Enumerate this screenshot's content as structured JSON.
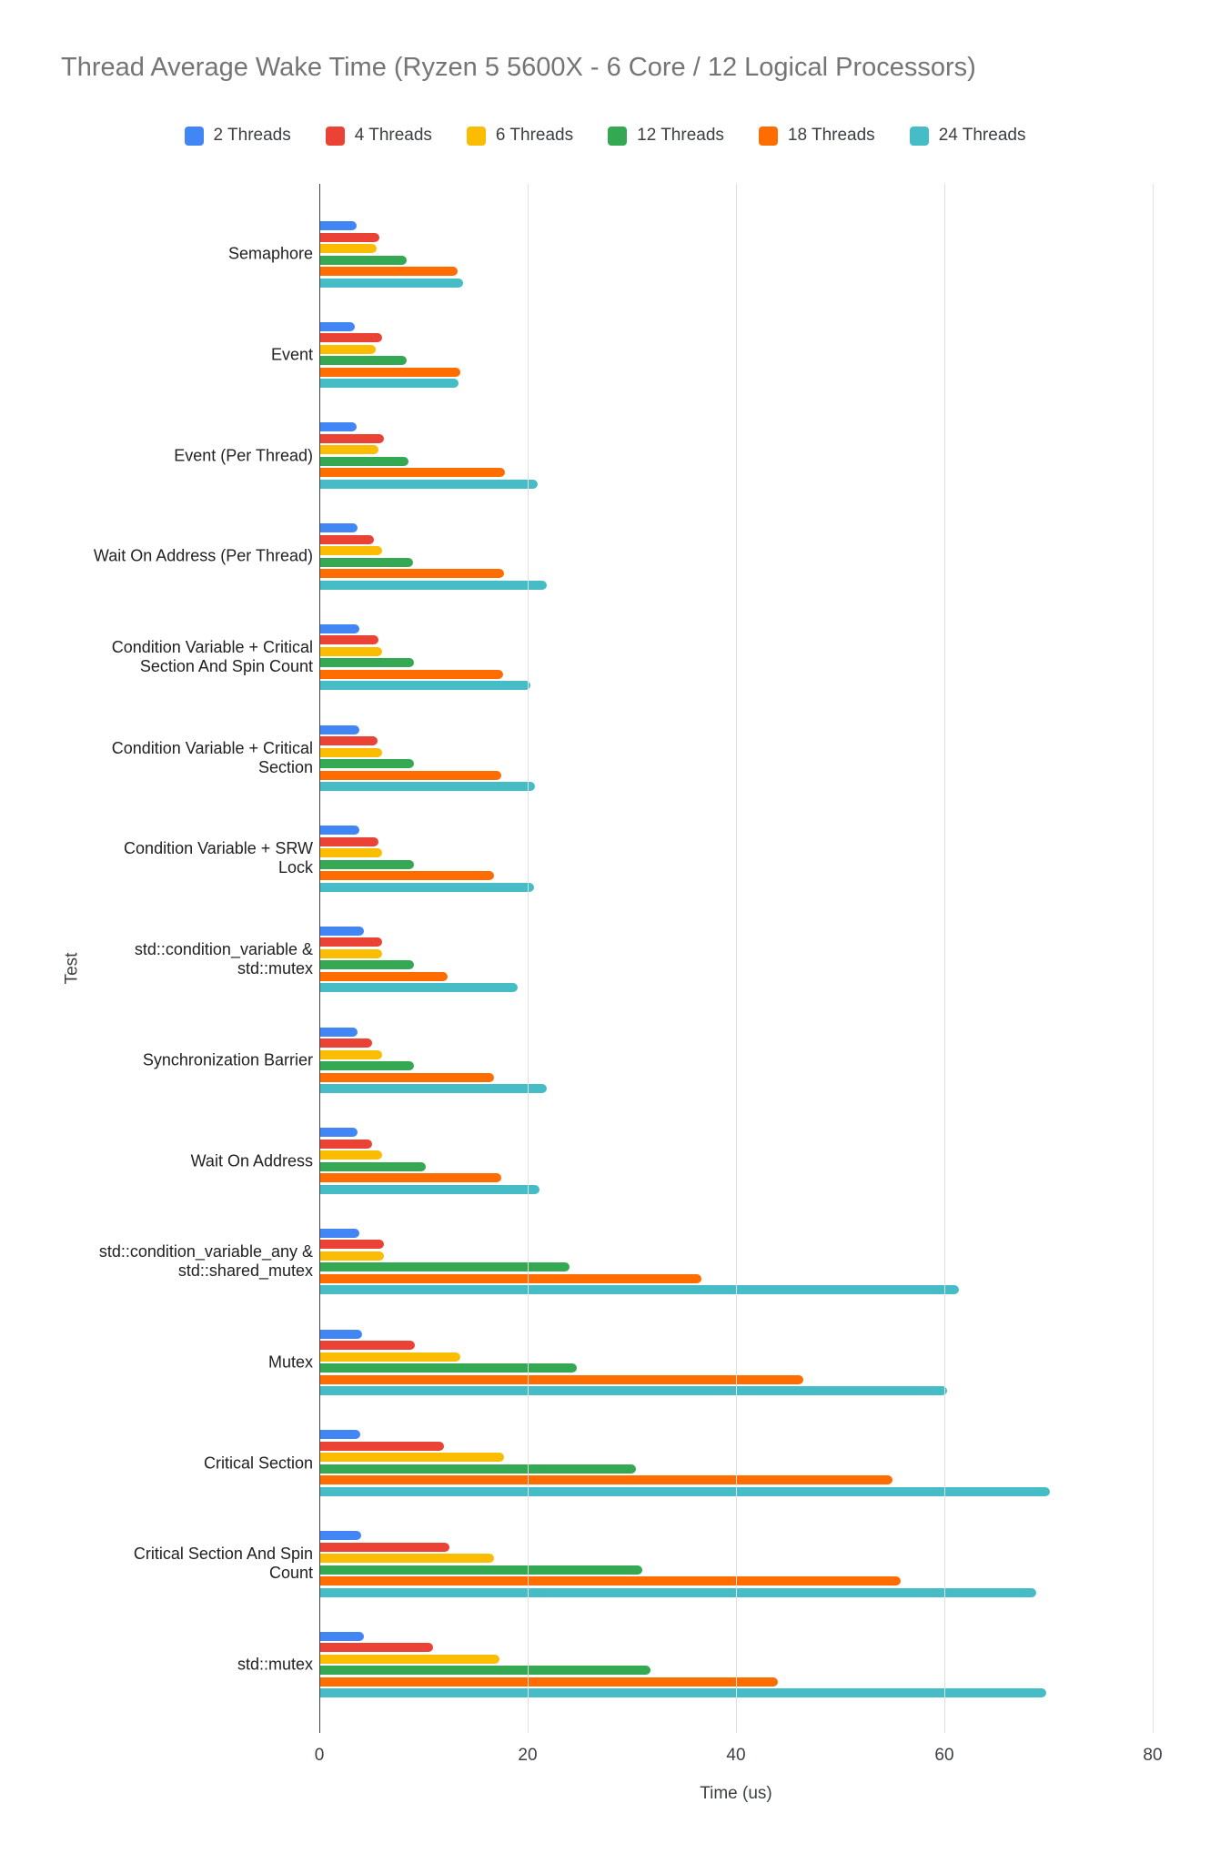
{
  "title": "Thread Average Wake Time (Ryzen 5 5600X - 6 Core / 12 Logical Processors)",
  "chart_data": {
    "type": "bar",
    "orientation": "horizontal",
    "title": "Thread Average Wake Time (Ryzen 5 5600X - 6 Core / 12 Logical Processors)",
    "xlabel": "Time (us)",
    "ylabel": "Test",
    "xlim": [
      0,
      80
    ],
    "x_ticks": [
      0,
      20,
      40,
      60,
      80
    ],
    "grid": true,
    "legend_position": "top",
    "categories": [
      "Semaphore",
      "Event",
      "Event (Per Thread)",
      "Wait On Address (Per Thread)",
      "Condition Variable + Critical Section And Spin Count",
      "Condition Variable + Critical Section",
      "Condition Variable + SRW Lock",
      "std::condition_variable & std::mutex",
      "Synchronization Barrier",
      "Wait On Address",
      "std::condition_variable_any & std::shared_mutex",
      "Mutex",
      "Critical Section",
      "Critical Section And Spin Count",
      "std::mutex"
    ],
    "series": [
      {
        "name": "2 Threads",
        "color": "#4285F4",
        "values": [
          3.6,
          3.4,
          3.6,
          3.7,
          3.8,
          3.8,
          3.8,
          4.3,
          3.7,
          3.7,
          3.8,
          4.1,
          3.9,
          4.0,
          4.3
        ]
      },
      {
        "name": "4 Threads",
        "color": "#EA4335",
        "values": [
          5.8,
          6.0,
          6.2,
          5.2,
          5.7,
          5.6,
          5.7,
          6.0,
          5.1,
          5.1,
          6.2,
          9.2,
          12.0,
          12.5,
          10.9
        ]
      },
      {
        "name": "6 Threads",
        "color": "#FBBC04",
        "values": [
          5.5,
          5.4,
          5.7,
          6.0,
          6.0,
          6.0,
          6.0,
          6.0,
          6.0,
          6.0,
          6.2,
          13.5,
          17.7,
          16.8,
          17.3
        ]
      },
      {
        "name": "12 Threads",
        "color": "#34A853",
        "values": [
          8.4,
          8.4,
          8.6,
          9.0,
          9.1,
          9.1,
          9.1,
          9.1,
          9.1,
          10.2,
          24.0,
          24.7,
          30.4,
          31.0,
          31.8
        ]
      },
      {
        "name": "18 Threads",
        "color": "#FF6D01",
        "values": [
          13.3,
          13.5,
          17.8,
          17.7,
          17.6,
          17.5,
          16.8,
          12.3,
          16.8,
          17.5,
          36.7,
          46.5,
          55.0,
          55.8,
          44.0
        ]
      },
      {
        "name": "24 Threads",
        "color": "#46BDC6",
        "values": [
          13.8,
          13.4,
          21.0,
          21.8,
          20.3,
          20.7,
          20.6,
          19.0,
          21.8,
          21.1,
          61.4,
          60.3,
          70.1,
          68.8,
          69.8
        ]
      }
    ]
  }
}
